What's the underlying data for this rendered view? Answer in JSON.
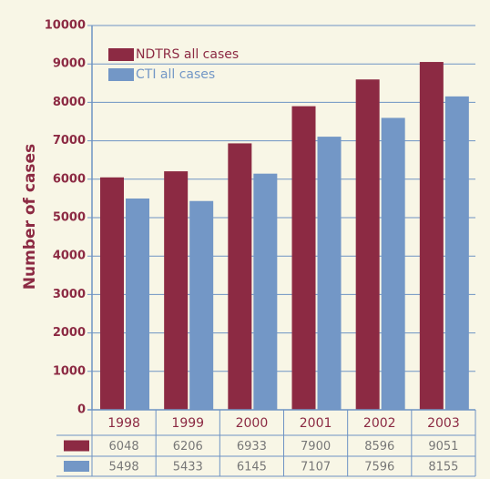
{
  "chart_data": {
    "type": "bar",
    "y_label": "Number of cases",
    "categories": [
      "1998",
      "1999",
      "2000",
      "2001",
      "2002",
      "2003"
    ],
    "series": [
      {
        "name": "NDTRS all cases",
        "color": "#8c2a43",
        "values": [
          6048,
          6206,
          6933,
          7900,
          8596,
          9051
        ]
      },
      {
        "name": "CTI all cases",
        "color": "#7397c6",
        "values": [
          5498,
          5433,
          6145,
          7107,
          7596,
          8155
        ]
      }
    ],
    "ylim": [
      0,
      10000
    ],
    "yticks": [
      0,
      1000,
      2000,
      3000,
      4000,
      5000,
      6000,
      7000,
      8000,
      9000,
      10000
    ],
    "grid": true
  }
}
